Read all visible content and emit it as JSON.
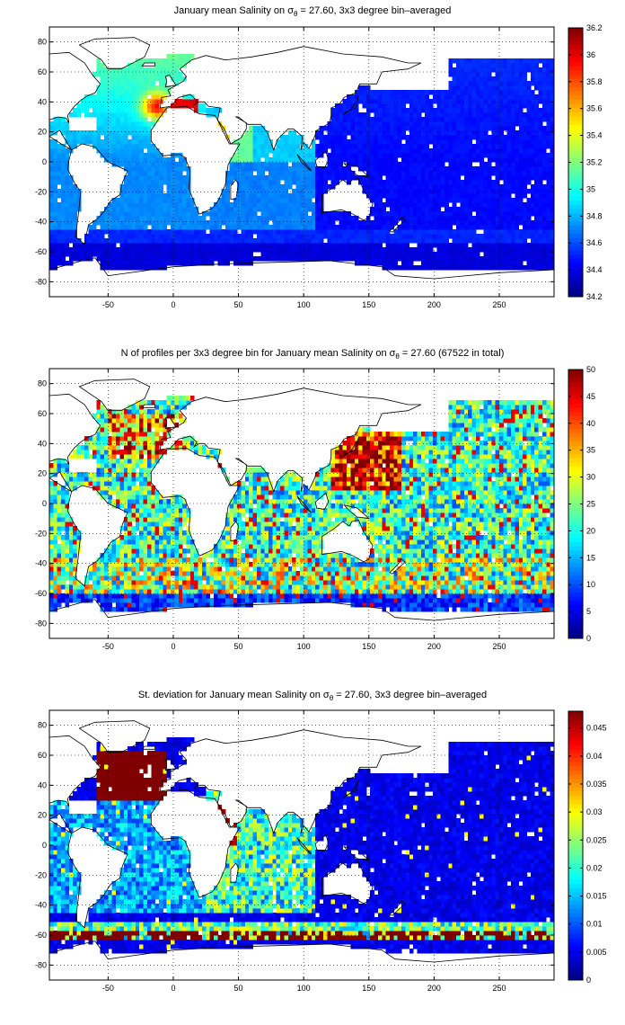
{
  "chart_data": [
    {
      "type": "heatmap",
      "title_pre": "January mean Salinity on ",
      "title_sym": "σ",
      "title_sub": "θ",
      "title_post": " = 27.60, 3x3 degree bin–averaged",
      "xlim": [
        -95,
        292
      ],
      "ylim": [
        -90,
        90
      ],
      "xticks": [
        -50,
        0,
        50,
        100,
        150,
        200,
        250
      ],
      "yticks": [
        80,
        60,
        40,
        20,
        0,
        -20,
        -40,
        -60,
        -80
      ],
      "colorbar": {
        "min": 34.2,
        "max": 36.2,
        "ticks": [
          36.2,
          36,
          35.8,
          35.6,
          35.4,
          35.2,
          35,
          34.8,
          34.6,
          34.4,
          34.2
        ]
      },
      "colormap": "jet",
      "field": "salinity"
    },
    {
      "type": "heatmap",
      "title_pre": "N of profiles per 3x3 degree bin for January mean Salinity on ",
      "title_sym": "σ",
      "title_sub": "θ",
      "title_post": " = 27.60 (67522 in total)",
      "xlim": [
        -95,
        292
      ],
      "ylim": [
        -90,
        90
      ],
      "xticks": [
        -50,
        0,
        50,
        100,
        150,
        200,
        250
      ],
      "yticks": [
        80,
        60,
        40,
        20,
        0,
        -20,
        -40,
        -60,
        -80
      ],
      "colorbar": {
        "min": 0,
        "max": 50,
        "ticks": [
          50,
          45,
          40,
          35,
          30,
          25,
          20,
          15,
          10,
          5,
          0
        ]
      },
      "colormap": "jet",
      "field": "count",
      "total_profiles": 67522
    },
    {
      "type": "heatmap",
      "title_pre": "St. deviation for January mean Salinity on ",
      "title_sym": "σ",
      "title_sub": "θ",
      "title_post": " = 27.60, 3x3 degree bin–averaged",
      "xlim": [
        -95,
        292
      ],
      "ylim": [
        -90,
        90
      ],
      "xticks": [
        -50,
        0,
        50,
        100,
        150,
        200,
        250
      ],
      "yticks": [
        80,
        60,
        40,
        20,
        0,
        -20,
        -40,
        -60,
        -80
      ],
      "colorbar": {
        "min": 0,
        "max": 0.048,
        "ticks": [
          0.045,
          0.04,
          0.035,
          0.03,
          0.025,
          0.02,
          0.015,
          0.01,
          0.005,
          0
        ]
      },
      "colormap": "jet",
      "field": "stdev"
    }
  ]
}
